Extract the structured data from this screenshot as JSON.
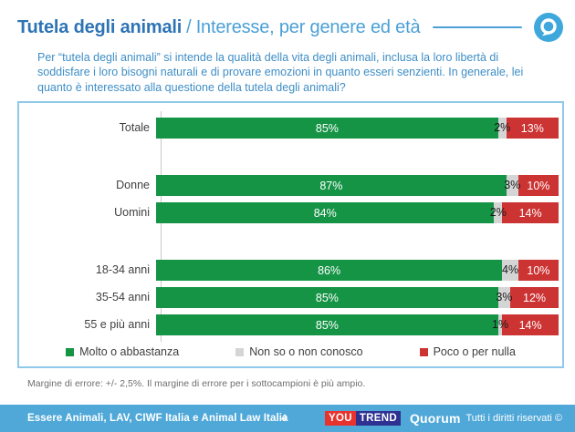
{
  "header": {
    "title_main": "Tutela degli animali",
    "title_separator": "/",
    "title_sub": "Interesse, per genere ed età",
    "logo": "quorum-q-icon"
  },
  "question": "Per “tutela degli animali” si intende la qualità della vita degli animali, inclusa la loro libertà di soddisfare i loro bisogni naturali e di provare emozioni in quanto esseri senzienti. In generale, lei quanto è interessato alla questione della tutela degli animali?",
  "chart_data": {
    "type": "bar",
    "orientation": "horizontal",
    "stacked": true,
    "unit": "%",
    "xlim": [
      0,
      100
    ],
    "grid": false,
    "legend_position": "bottom",
    "categories": [
      "Totale",
      "Donne",
      "Uomini",
      "18-34 anni",
      "35-54 anni",
      "55 e più anni"
    ],
    "series": [
      {
        "name": "Molto o abbastanza",
        "color": "#169446",
        "values": [
          85,
          87,
          84,
          86,
          85,
          85
        ]
      },
      {
        "name": "Non so o non conosco",
        "color": "#D5D5D5",
        "values": [
          2,
          3,
          2,
          4,
          3,
          1
        ]
      },
      {
        "name": "Poco o per nulla",
        "color": "#CC3333",
        "values": [
          13,
          10,
          14,
          10,
          12,
          14
        ]
      }
    ]
  },
  "note": "Margine di errore: +/- 2,5%. Il margine di errore per i sottocampioni è più ampio.",
  "footer": {
    "sources": "Essere Animali, LAV, CIWF Italia e Animal Law Italia",
    "page_number": "4",
    "youtrend_you": "YOU",
    "youtrend_trend": "TREND",
    "quorum": "Quorum",
    "rights": "Tutti i diritti riservati ©"
  },
  "colors": {
    "title_dark_blue": "#2E74B5",
    "title_light_blue": "#4BA0D6",
    "question_blue": "#3E8EC6",
    "box_border_blue": "#8EC8EA",
    "bar_green": "#169446",
    "bar_gray": "#D5D5D5",
    "bar_red": "#CC3333",
    "footer_blue": "#4FA8D8",
    "logo_blue": "#3EA8DC",
    "youtrend_red": "#E8322E",
    "youtrend_navy": "#2E3192"
  }
}
